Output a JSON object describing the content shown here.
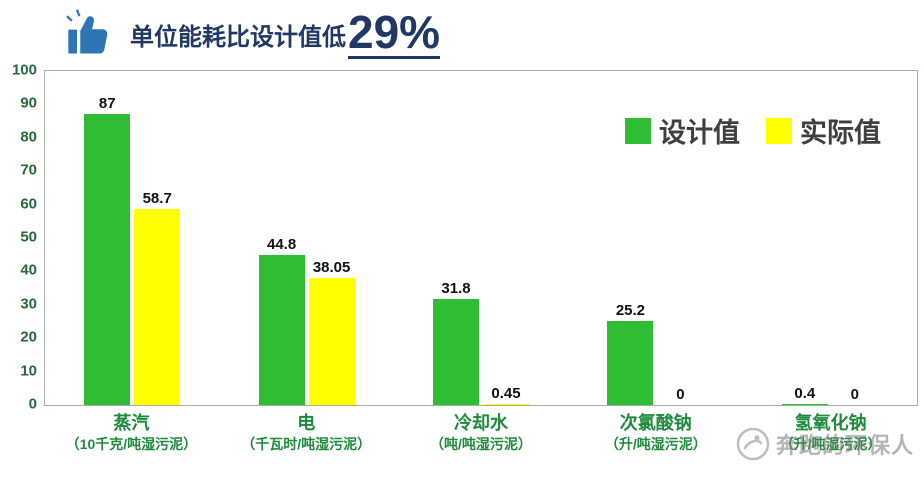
{
  "header": {
    "title_text": "单位能耗比设计值低",
    "title_highlight": "29%"
  },
  "chart_data": {
    "type": "bar",
    "categories": [
      "蒸汽",
      "电",
      "冷却水",
      "次氯酸钠",
      "氢氧化钠"
    ],
    "category_units": [
      "（10千克/吨湿污泥）",
      "（千瓦时/吨湿污泥）",
      "（吨/吨湿污泥）",
      "（升/吨湿污泥）",
      "（升/吨湿污泥）"
    ],
    "series": [
      {
        "name": "设计值",
        "color": "#2fbe33",
        "values": [
          87,
          44.8,
          31.8,
          25.2,
          0.4
        ]
      },
      {
        "name": "实际值",
        "color": "#ffff00",
        "values": [
          58.7,
          38.05,
          0.45,
          0,
          0
        ]
      }
    ],
    "ylim": [
      0,
      100
    ],
    "yticks": [
      0,
      10,
      20,
      30,
      40,
      50,
      60,
      70,
      80,
      90,
      100
    ],
    "grid": false,
    "legend_position": "top-right"
  },
  "watermark": {
    "text": "奔跑的环保人"
  },
  "colors": {
    "title": "#1f3864",
    "design_value_green": "#2fbe33",
    "actual_value_yellow": "#ffff00",
    "axis_label_green": "#1e8a3c"
  }
}
